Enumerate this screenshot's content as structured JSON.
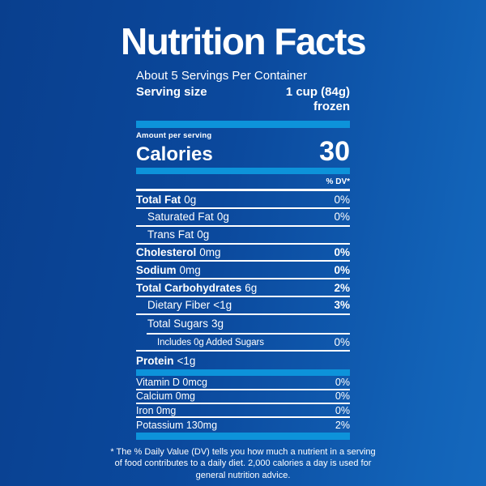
{
  "theme": {
    "background_left": "#093f8e",
    "background_right": "#1568bd",
    "accent_bar_color": "#0d93da",
    "text_color": "#ffffff"
  },
  "label": {
    "title": "Nutrition Facts",
    "servings_per_container": "About 5 Servings Per Container",
    "serving_size_label": "Serving size",
    "serving_size_value": "1 cup (84g)",
    "serving_size_note": "frozen",
    "amount_per_serving": "Amount per serving",
    "calories_label": "Calories",
    "calories_value": "30",
    "dv_header": "% DV*",
    "rows": [
      {
        "name": "Total Fat",
        "amount": "0g",
        "dv": "0%"
      },
      {
        "name": "Saturated Fat",
        "amount": "0g",
        "dv": "0%"
      },
      {
        "name": "Trans Fat",
        "amount": "0g",
        "dv": ""
      },
      {
        "name": "Cholesterol",
        "amount": "0mg",
        "dv": "0%"
      },
      {
        "name": "Sodium",
        "amount": "0mg",
        "dv": "0%"
      },
      {
        "name": "Total Carbohydrates",
        "amount": "6g",
        "dv": "2%"
      },
      {
        "name": "Dietary Fiber",
        "amount": "<1g",
        "dv": "3%"
      },
      {
        "name": "Total Sugars",
        "amount": "3g",
        "dv": ""
      },
      {
        "name": "Includes 0g Added Sugars",
        "amount": "",
        "dv": "0%"
      },
      {
        "name": "Protein",
        "amount": "<1g",
        "dv": ""
      }
    ],
    "vitamins": [
      {
        "name": "Vitamin D 0mcg",
        "dv": "0%"
      },
      {
        "name": "Calcium 0mg",
        "dv": "0%"
      },
      {
        "name": "Iron 0mg",
        "dv": "0%"
      },
      {
        "name": "Potassium 130mg",
        "dv": "2%"
      }
    ],
    "footnote": "* The % Daily Value (DV) tells you how much a nutrient in a serving of food contributes to a daily diet. 2,000 calories a day is used for general nutrition advice."
  }
}
